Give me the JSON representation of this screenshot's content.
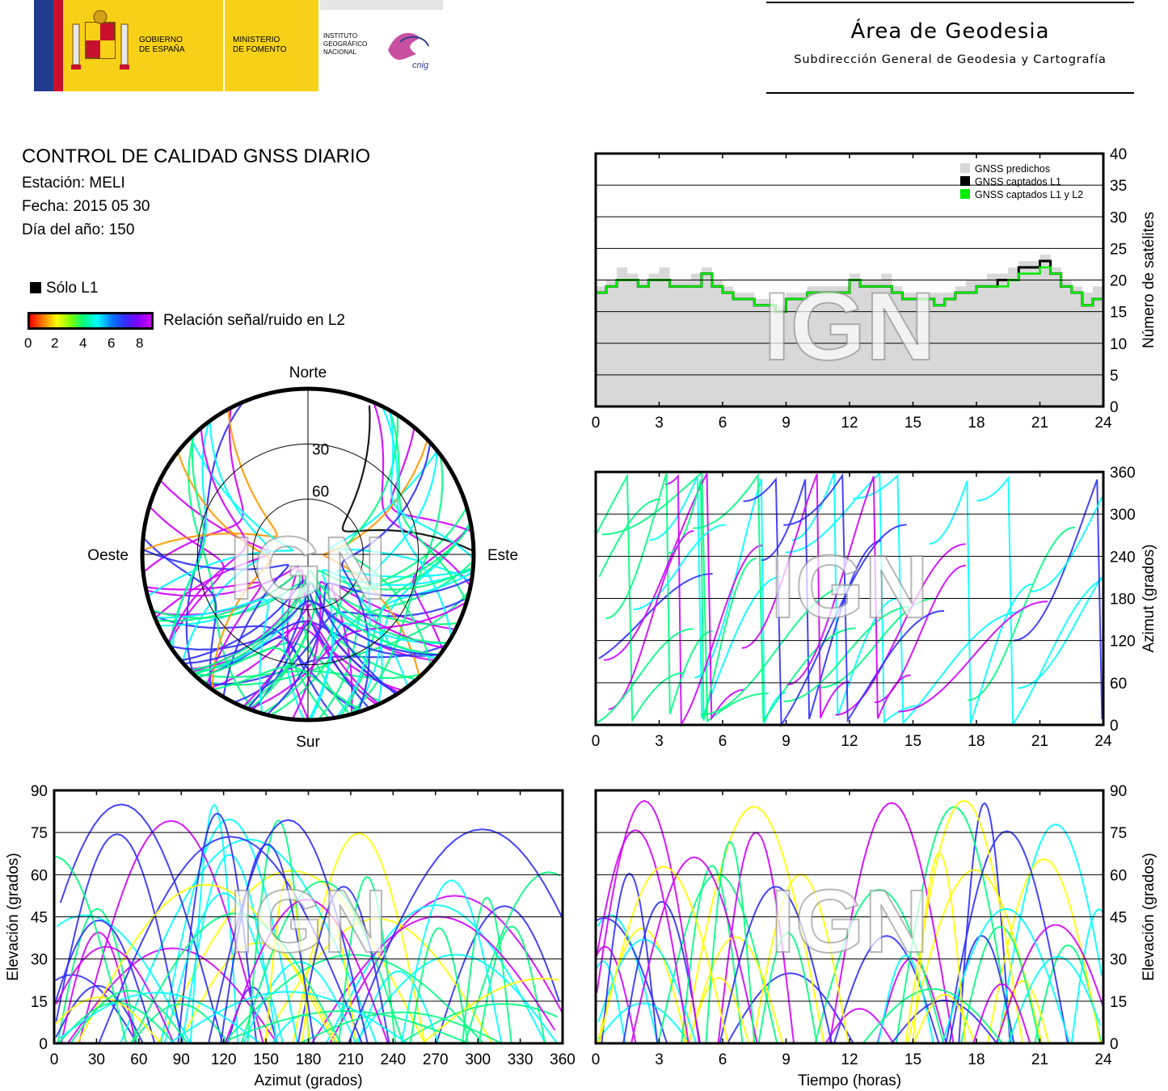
{
  "header": {
    "gobierno": "GOBIERNO\nDE ESPAÑA",
    "gobierno_l1": "GOBIERNO",
    "gobierno_l2": "DE ESPAÑA",
    "ministerio_l1": "MINISTERIO",
    "ministerio_l2": "DE FOMENTO",
    "instituto_l1": "INSTITUTO",
    "instituto_l2": "GEOGRÁFICO",
    "instituto_l3": "NACIONAL",
    "cnig": "cnig",
    "area_title": "Área de Geodesia",
    "area_subtitle": "Subdirección General de Geodesia y Cartografía"
  },
  "info": {
    "title": "CONTROL DE CALIDAD GNSS DIARIO",
    "station": "Estación: MELI",
    "date": "Fecha: 2015 05 30",
    "doy": "Día del año: 150"
  },
  "legend": {
    "solo_l1": "Sólo L1",
    "snr_label": "Relación señal/ruido en L2",
    "snr_ticks": [
      "0",
      "2",
      "4",
      "6",
      "8"
    ],
    "snr_colors": [
      "#ff0000",
      "#ffff00",
      "#00ff80",
      "#00ffff",
      "#3030ff",
      "#d000ff"
    ]
  },
  "watermark": "IGN",
  "colors": {
    "predicted": "#d8d8d8",
    "l1": "#000000",
    "l1l2": "#00ee00"
  },
  "chart_data": [
    {
      "type": "polar-skyplot",
      "directions": {
        "north": "Norte",
        "south": "Sur",
        "east": "Este",
        "west": "Oeste"
      },
      "ring_labels": [
        "30",
        "60"
      ]
    },
    {
      "type": "area",
      "xlim": [
        0,
        24
      ],
      "ylim": [
        0,
        40
      ],
      "x_ticks": [
        "0",
        "3",
        "6",
        "9",
        "12",
        "15",
        "18",
        "21",
        "24"
      ],
      "y_ticks": [
        "0",
        "5",
        "10",
        "15",
        "20",
        "25",
        "30",
        "35",
        "40"
      ],
      "ylabel": "Número de satélites",
      "legend": [
        "GNSS predichos",
        "GNSS captados L1",
        "GNSS captados L1 y L2"
      ],
      "grid": true,
      "series": [
        {
          "name": "GNSS predichos",
          "x": [
            0,
            0.5,
            1,
            1.5,
            2,
            2.5,
            3,
            3.5,
            4,
            4.5,
            5,
            5.5,
            6,
            6.5,
            7,
            7.5,
            8,
            8.5,
            9,
            9.5,
            10,
            10.5,
            11,
            11.5,
            12,
            12.5,
            13,
            13.5,
            14,
            14.5,
            15,
            15.5,
            16,
            16.5,
            17,
            17.5,
            18,
            18.5,
            19,
            19.5,
            20,
            20.5,
            21,
            21.5,
            22,
            22.5,
            23,
            23.5,
            24
          ],
          "values": [
            19,
            20,
            22,
            21,
            20,
            21,
            22,
            20,
            20,
            21,
            22,
            20,
            19,
            18,
            18,
            17,
            17,
            16,
            18,
            18,
            19,
            19,
            19,
            19,
            21,
            20,
            20,
            21,
            19,
            18,
            18,
            18,
            18,
            18,
            19,
            20,
            20,
            21,
            21,
            22,
            23,
            23,
            24,
            22,
            20,
            19,
            18,
            19,
            18
          ]
        },
        {
          "name": "GNSS captados L1",
          "x": [
            0,
            0.5,
            1,
            1.5,
            2,
            2.5,
            3,
            3.5,
            4,
            4.5,
            5,
            5.5,
            6,
            6.5,
            7,
            7.5,
            8,
            8.5,
            9,
            9.5,
            10,
            10.5,
            11,
            11.5,
            12,
            12.5,
            13,
            13.5,
            14,
            14.5,
            15,
            15.5,
            16,
            16.5,
            17,
            17.5,
            18,
            18.5,
            19,
            19.5,
            20,
            20.5,
            21,
            21.5,
            22,
            22.5,
            23,
            23.5,
            24
          ],
          "values": [
            18,
            19,
            20,
            20,
            19,
            20,
            20,
            19,
            19,
            19,
            21,
            19,
            18,
            17,
            17,
            16,
            16,
            15,
            17,
            17,
            18,
            18,
            18,
            18,
            20,
            19,
            19,
            19,
            18,
            17,
            17,
            17,
            16,
            17,
            18,
            18,
            19,
            19,
            20,
            20,
            22,
            22,
            23,
            21,
            19,
            18,
            16,
            17,
            17
          ]
        },
        {
          "name": "GNSS captados L1 y L2",
          "x": [
            0,
            0.5,
            1,
            1.5,
            2,
            2.5,
            3,
            3.5,
            4,
            4.5,
            5,
            5.5,
            6,
            6.5,
            7,
            7.5,
            8,
            8.5,
            9,
            9.5,
            10,
            10.5,
            11,
            11.5,
            12,
            12.5,
            13,
            13.5,
            14,
            14.5,
            15,
            15.5,
            16,
            16.5,
            17,
            17.5,
            18,
            18.5,
            19,
            19.5,
            20,
            20.5,
            21,
            21.5,
            22,
            22.5,
            23,
            23.5,
            24
          ],
          "values": [
            18,
            19,
            20,
            20,
            19,
            20,
            20,
            19,
            19,
            19,
            21,
            19,
            18,
            17,
            17,
            16,
            16,
            15,
            17,
            17,
            18,
            18,
            18,
            18,
            20,
            19,
            19,
            19,
            18,
            17,
            17,
            17,
            16,
            17,
            18,
            18,
            19,
            19,
            19,
            20,
            21,
            21,
            22,
            21,
            19,
            18,
            16,
            17,
            17
          ]
        }
      ]
    },
    {
      "type": "scatter",
      "xlim": [
        0,
        24
      ],
      "ylim": [
        0,
        360
      ],
      "x_ticks": [
        "0",
        "3",
        "6",
        "9",
        "12",
        "15",
        "18",
        "21",
        "24"
      ],
      "y_ticks": [
        "0",
        "60",
        "120",
        "180",
        "240",
        "300",
        "360"
      ],
      "ylabel": "Azimut (grados)",
      "grid": true
    },
    {
      "type": "scatter",
      "xlim": [
        0,
        360
      ],
      "ylim": [
        0,
        90
      ],
      "x_ticks": [
        "0",
        "30",
        "60",
        "90",
        "120",
        "150",
        "180",
        "210",
        "240",
        "270",
        "300",
        "330",
        "360"
      ],
      "y_ticks": [
        "0",
        "15",
        "30",
        "45",
        "60",
        "75",
        "90"
      ],
      "xlabel": "Azimut (grados)",
      "ylabel": "Elevación (grados)",
      "grid": true
    },
    {
      "type": "scatter",
      "xlim": [
        0,
        24
      ],
      "ylim": [
        0,
        90
      ],
      "x_ticks": [
        "0",
        "3",
        "6",
        "9",
        "12",
        "15",
        "18",
        "21",
        "24"
      ],
      "y_ticks": [
        "0",
        "15",
        "30",
        "45",
        "60",
        "75",
        "90"
      ],
      "xlabel": "Tiempo (horas)",
      "ylabel": "Elevación (grados)",
      "grid": true
    }
  ]
}
